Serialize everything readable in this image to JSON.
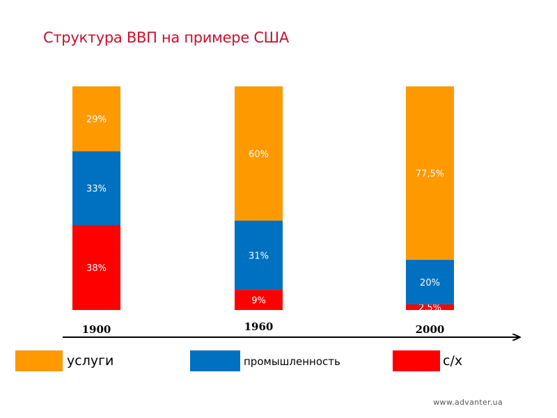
{
  "chart_data": {
    "type": "bar",
    "stacked": true,
    "title": "Структура ВВП на примере США",
    "categories": [
      "1900",
      "1960",
      "2000"
    ],
    "series": [
      {
        "name": "с/х",
        "color": "#ff0000",
        "values": [
          38,
          9,
          2.5
        ],
        "labels": [
          "38%",
          "9%",
          "2,5%"
        ]
      },
      {
        "name": "промышленность",
        "color": "#0070c0",
        "values": [
          33,
          31,
          20
        ],
        "labels": [
          "33%",
          "31%",
          "20%"
        ]
      },
      {
        "name": "услуги",
        "color": "#ff9900",
        "values": [
          29,
          60,
          77.5
        ],
        "labels": [
          "29%",
          "60%",
          "77,5%"
        ]
      }
    ],
    "ylim": [
      0,
      100
    ],
    "xlabel": "",
    "ylabel": ""
  },
  "legend": {
    "services": "услуги",
    "industry": "промышленность",
    "agriculture": "с/х"
  },
  "footer": "www.advanter.ua"
}
